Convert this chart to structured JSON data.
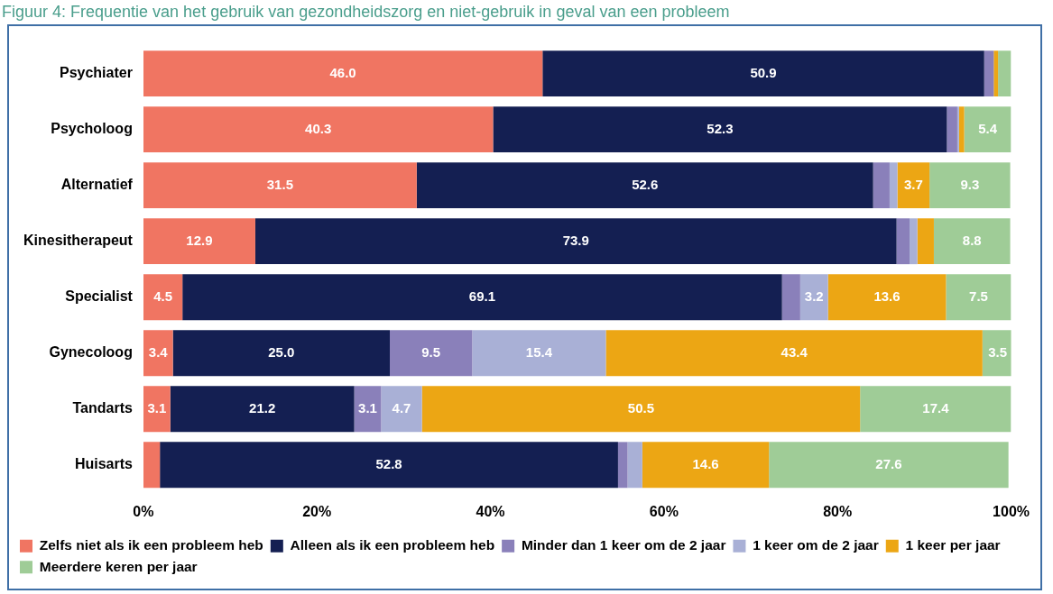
{
  "chart_data": {
    "type": "bar",
    "orientation": "horizontal",
    "stacked": true,
    "title": "Figuur 4: Frequentie van het gebruik van gezondheidszorg en niet-gebruik in geval van een probleem",
    "categories": [
      "Psychiater",
      "Psycholoog",
      "Alternatief",
      "Kinesitherapeut",
      "Specialist",
      "Gynecoloog",
      "Tandarts",
      "Huisarts"
    ],
    "series": [
      {
        "name": "Zelfs niet als ik een probleem heb",
        "color": "#f07562",
        "values": [
          46.0,
          40.3,
          31.5,
          12.9,
          4.5,
          3.4,
          3.1,
          1.9
        ],
        "value_labels": [
          "46.0",
          "40.3",
          "31.5",
          "12.9",
          "4.5",
          "3.4",
          "3.1",
          null
        ]
      },
      {
        "name": "Alleen als ik een probleem heb",
        "color": "#141f52",
        "values": [
          50.9,
          52.3,
          52.6,
          73.9,
          69.1,
          25.0,
          21.2,
          52.8
        ],
        "value_labels": [
          "50.9",
          "52.3",
          "52.6",
          "73.9",
          "69.1",
          "25.0",
          "21.2",
          "52.8"
        ]
      },
      {
        "name": "Minder dan 1 keer om de 2 jaar",
        "color": "#8a80ba",
        "values": [
          1.1,
          1.2,
          1.9,
          1.5,
          2.1,
          9.5,
          3.1,
          1.1
        ],
        "value_labels": [
          null,
          null,
          null,
          null,
          null,
          "9.5",
          "3.1",
          null
        ]
      },
      {
        "name": "1 keer om de 2 jaar",
        "color": "#a9b0d6",
        "values": [
          0,
          0.2,
          0.9,
          0.9,
          3.2,
          15.4,
          4.7,
          1.7
        ],
        "value_labels": [
          null,
          null,
          null,
          null,
          "3.2",
          "15.4",
          "4.7",
          null
        ]
      },
      {
        "name": "1 keer per jaar",
        "color": "#eca614",
        "values": [
          0.5,
          0.6,
          3.7,
          1.9,
          13.6,
          43.4,
          50.5,
          14.6
        ],
        "value_labels": [
          null,
          null,
          "3.7",
          null,
          "13.6",
          "43.4",
          "50.5",
          "14.6"
        ]
      },
      {
        "name": "Meerdere keren per jaar",
        "color": "#9fcc97",
        "values": [
          1.5,
          5.4,
          9.3,
          8.8,
          7.5,
          3.5,
          17.4,
          27.6
        ],
        "value_labels": [
          null,
          "5.4",
          "9.3",
          "8.8",
          "7.5",
          "3.5",
          "17.4",
          "27.6"
        ]
      }
    ],
    "xlim": [
      0,
      100
    ],
    "xticks": [
      {
        "value": 0,
        "label": "0%"
      },
      {
        "value": 20,
        "label": "20%"
      },
      {
        "value": 40,
        "label": "40%"
      },
      {
        "value": 60,
        "label": "60%"
      },
      {
        "value": 80,
        "label": "80%"
      },
      {
        "value": 100,
        "label": "100%"
      }
    ],
    "grid": false,
    "legend": "bottom"
  }
}
